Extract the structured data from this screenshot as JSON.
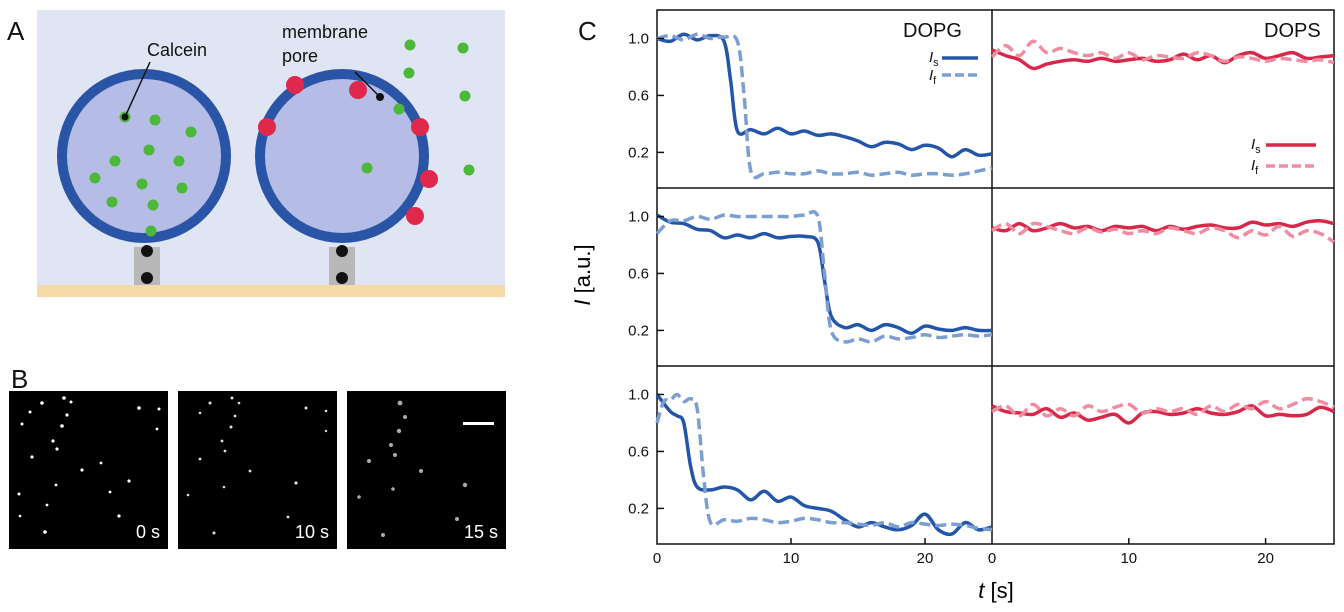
{
  "panels": {
    "a": "A",
    "b": "B",
    "c": "C"
  },
  "schematic": {
    "calcein_label": "Calcein",
    "pore_label_line1": "membrane",
    "pore_label_line2": "pore"
  },
  "micrographs": [
    {
      "time": "0 s"
    },
    {
      "time": "10 s"
    },
    {
      "time": "15 s"
    }
  ],
  "chart": {
    "ylabel_sym": "I",
    "ylabel_unit": "[a.u.]",
    "xlabel_sym": "t",
    "xlabel_unit": "[s]",
    "yticks": [
      "1.0",
      "0.6",
      "0.2"
    ],
    "xticks_left": [
      "0",
      "10",
      "20",
      "0"
    ],
    "xticks_right": [
      "10",
      "20"
    ],
    "titles": {
      "left": "DOPG",
      "right": "DOPS"
    },
    "legend": {
      "s_sym": "I",
      "s_sub": "s",
      "f_sym": "I",
      "f_sub": "f"
    },
    "colors": {
      "dopg": "#2356a8",
      "dopg_f": "#7b9fd0",
      "dops": "#d8284a",
      "dops_f": "#f08da0"
    }
  },
  "chart_data": [
    {
      "type": "line",
      "title": "DOPG",
      "ylabel": "I [a.u.]",
      "xlabel": "t [s]",
      "xlim": [
        0,
        25
      ],
      "ylim": [
        0,
        1.2
      ],
      "series": [
        {
          "name": "Is",
          "x": [
            0,
            1,
            2,
            3,
            4,
            5,
            5.5,
            6,
            7,
            8,
            9,
            10,
            11,
            12,
            13,
            14,
            15,
            16,
            17,
            18,
            19,
            20,
            21,
            22,
            23,
            24,
            25
          ],
          "values": [
            1.0,
            0.98,
            1.03,
            0.99,
            1.02,
            0.98,
            0.7,
            0.35,
            0.36,
            0.33,
            0.37,
            0.33,
            0.35,
            0.32,
            0.33,
            0.31,
            0.28,
            0.24,
            0.27,
            0.26,
            0.22,
            0.25,
            0.23,
            0.17,
            0.22,
            0.18,
            0.19
          ]
        },
        {
          "name": "If",
          "x": [
            0,
            1,
            2,
            3,
            4,
            5,
            6,
            6.5,
            7,
            8,
            9,
            10,
            11,
            12,
            13,
            14,
            15,
            16,
            17,
            18,
            19,
            20,
            21,
            22,
            23,
            24,
            25
          ],
          "values": [
            1.0,
            1.02,
            0.99,
            1.03,
            1.0,
            1.01,
            0.98,
            0.6,
            0.07,
            0.05,
            0.06,
            0.05,
            0.05,
            0.07,
            0.05,
            0.05,
            0.06,
            0.04,
            0.05,
            0.06,
            0.04,
            0.05,
            0.05,
            0.04,
            0.05,
            0.07,
            0.09
          ]
        }
      ]
    },
    {
      "type": "line",
      "title": "DOPG",
      "xlim": [
        0,
        25
      ],
      "ylim": [
        0,
        1.2
      ],
      "series": [
        {
          "name": "Is",
          "x": [
            0,
            1,
            2,
            3,
            4,
            5,
            6,
            7,
            8,
            9,
            10,
            11,
            12,
            12.5,
            13,
            14,
            15,
            16,
            17,
            18,
            19,
            20,
            21,
            22,
            23,
            24,
            25
          ],
          "values": [
            1.01,
            0.96,
            0.95,
            0.91,
            0.9,
            0.85,
            0.87,
            0.85,
            0.88,
            0.85,
            0.86,
            0.86,
            0.82,
            0.55,
            0.3,
            0.22,
            0.24,
            0.2,
            0.24,
            0.22,
            0.18,
            0.23,
            0.21,
            0.2,
            0.22,
            0.2,
            0.2
          ]
        },
        {
          "name": "If",
          "x": [
            0,
            1,
            2,
            3,
            4,
            5,
            6,
            7,
            8,
            9,
            10,
            11,
            12,
            12.5,
            13,
            14,
            15,
            16,
            17,
            18,
            19,
            20,
            21,
            22,
            23,
            24,
            25
          ],
          "values": [
            0.88,
            0.97,
            0.97,
            1.0,
            0.98,
            1.01,
            1.0,
            1.0,
            1.0,
            1.0,
            1.0,
            1.01,
            1.0,
            0.6,
            0.2,
            0.12,
            0.14,
            0.12,
            0.16,
            0.14,
            0.15,
            0.17,
            0.15,
            0.16,
            0.17,
            0.16,
            0.17
          ]
        }
      ]
    },
    {
      "type": "line",
      "title": "DOPG",
      "xlim": [
        0,
        25
      ],
      "ylim": [
        0,
        1.2
      ],
      "series": [
        {
          "name": "Is",
          "x": [
            0,
            1,
            1.5,
            2,
            2.5,
            3,
            4,
            5,
            6,
            7,
            8,
            9,
            10,
            11,
            12,
            13,
            14,
            15,
            16,
            17,
            18,
            19,
            20,
            21,
            22,
            23,
            24,
            25
          ],
          "values": [
            1.0,
            0.88,
            0.85,
            0.8,
            0.5,
            0.35,
            0.33,
            0.35,
            0.33,
            0.26,
            0.32,
            0.25,
            0.28,
            0.22,
            0.2,
            0.18,
            0.12,
            0.07,
            0.1,
            0.07,
            0.05,
            0.08,
            0.16,
            0.05,
            0.02,
            0.1,
            0.05,
            0.07
          ]
        },
        {
          "name": "If",
          "x": [
            0,
            0.5,
            1,
            1.5,
            2,
            2.5,
            3,
            3.5,
            4,
            5,
            6,
            7,
            8,
            9,
            10,
            11,
            12,
            13,
            14,
            15,
            16,
            17,
            18,
            19,
            20,
            21,
            22,
            23,
            24,
            25
          ],
          "values": [
            0.8,
            0.95,
            0.96,
            1.0,
            0.95,
            0.97,
            0.9,
            0.4,
            0.1,
            0.12,
            0.11,
            0.13,
            0.12,
            0.1,
            0.11,
            0.13,
            0.12,
            0.1,
            0.1,
            0.09,
            0.08,
            0.1,
            0.07,
            0.1,
            0.09,
            0.08,
            0.09,
            0.08,
            0.06,
            0.05
          ]
        }
      ]
    },
    {
      "type": "line",
      "title": "DOPS",
      "xlim": [
        0,
        25
      ],
      "ylim": [
        0,
        1.2
      ],
      "series": [
        {
          "name": "Is",
          "x": [
            0,
            1,
            2,
            3,
            4,
            5,
            6,
            7,
            8,
            9,
            10,
            11,
            12,
            13,
            14,
            15,
            16,
            17,
            18,
            19,
            20,
            21,
            22,
            23,
            24,
            25
          ],
          "values": [
            0.92,
            0.88,
            0.85,
            0.79,
            0.82,
            0.84,
            0.85,
            0.84,
            0.86,
            0.84,
            0.85,
            0.86,
            0.84,
            0.85,
            0.89,
            0.85,
            0.88,
            0.83,
            0.88,
            0.9,
            0.86,
            0.88,
            0.9,
            0.86,
            0.87,
            0.88
          ]
        },
        {
          "name": "If",
          "x": [
            0,
            1,
            2,
            3,
            4,
            5,
            6,
            7,
            8,
            9,
            10,
            11,
            12,
            13,
            14,
            15,
            16,
            17,
            18,
            19,
            20,
            21,
            22,
            23,
            24,
            25
          ],
          "values": [
            0.87,
            0.95,
            0.88,
            0.98,
            0.9,
            0.93,
            0.9,
            0.88,
            0.9,
            0.86,
            0.9,
            0.85,
            0.88,
            0.87,
            0.86,
            0.9,
            0.88,
            0.84,
            0.87,
            0.86,
            0.84,
            0.86,
            0.85,
            0.84,
            0.85,
            0.83
          ]
        }
      ]
    },
    {
      "type": "line",
      "title": "DOPS",
      "xlim": [
        0,
        25
      ],
      "ylim": [
        0,
        1.2
      ],
      "series": [
        {
          "name": "Is",
          "x": [
            0,
            1,
            2,
            3,
            4,
            5,
            6,
            7,
            8,
            9,
            10,
            11,
            12,
            13,
            14,
            15,
            16,
            17,
            18,
            19,
            20,
            21,
            22,
            23,
            24,
            25
          ],
          "values": [
            0.92,
            0.9,
            0.95,
            0.9,
            0.92,
            0.95,
            0.92,
            0.93,
            0.9,
            0.93,
            0.92,
            0.93,
            0.9,
            0.93,
            0.91,
            0.93,
            0.94,
            0.92,
            0.92,
            0.96,
            0.94,
            0.95,
            0.93,
            0.96,
            0.97,
            0.95
          ]
        },
        {
          "name": "If",
          "x": [
            0,
            1,
            2,
            3,
            4,
            5,
            6,
            7,
            8,
            9,
            10,
            11,
            12,
            13,
            14,
            15,
            16,
            17,
            18,
            19,
            20,
            21,
            22,
            23,
            24,
            25
          ],
          "values": [
            0.9,
            0.95,
            0.88,
            0.95,
            0.93,
            0.9,
            0.88,
            0.92,
            0.89,
            0.91,
            0.88,
            0.9,
            0.88,
            0.92,
            0.9,
            0.88,
            0.92,
            0.9,
            0.85,
            0.9,
            0.87,
            0.93,
            0.86,
            0.9,
            0.88,
            0.82
          ]
        }
      ]
    },
    {
      "type": "line",
      "title": "DOPS",
      "xlim": [
        0,
        25
      ],
      "ylim": [
        0,
        1.2
      ],
      "series": [
        {
          "name": "Is",
          "x": [
            0,
            1,
            2,
            3,
            4,
            5,
            6,
            7,
            8,
            9,
            10,
            11,
            12,
            13,
            14,
            15,
            16,
            17,
            18,
            19,
            20,
            21,
            22,
            23,
            24,
            25
          ],
          "values": [
            0.92,
            0.88,
            0.87,
            0.86,
            0.9,
            0.84,
            0.87,
            0.82,
            0.84,
            0.86,
            0.8,
            0.87,
            0.88,
            0.86,
            0.87,
            0.9,
            0.87,
            0.86,
            0.88,
            0.92,
            0.85,
            0.86,
            0.85,
            0.86,
            0.91,
            0.88
          ]
        },
        {
          "name": "If",
          "x": [
            0,
            1,
            2,
            3,
            4,
            5,
            6,
            7,
            8,
            9,
            10,
            11,
            12,
            13,
            14,
            15,
            16,
            17,
            18,
            19,
            20,
            21,
            22,
            23,
            24,
            25
          ],
          "values": [
            0.88,
            0.92,
            0.85,
            0.93,
            0.85,
            0.9,
            0.85,
            0.92,
            0.88,
            0.91,
            0.93,
            0.87,
            0.9,
            0.88,
            0.9,
            0.86,
            0.92,
            0.88,
            0.93,
            0.9,
            0.95,
            0.9,
            0.93,
            0.97,
            0.95,
            0.91
          ]
        }
      ]
    }
  ]
}
